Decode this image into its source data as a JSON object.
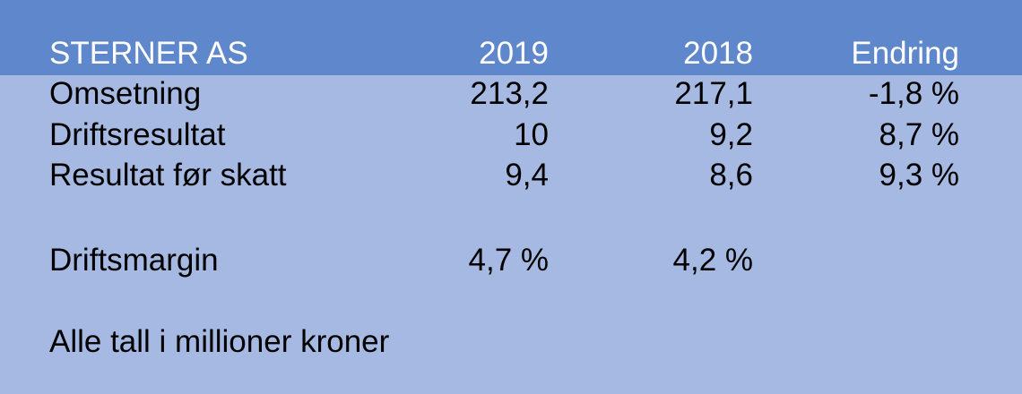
{
  "table": {
    "title": "STERNER AS",
    "columns": [
      "2019",
      "2018",
      "Endring"
    ],
    "rows": [
      {
        "label": "Omsetning",
        "values": [
          "213,2",
          "217,1",
          "-1,8 %"
        ]
      },
      {
        "label": "Driftsresultat",
        "values": [
          "10",
          "9,2",
          "8,7 %"
        ]
      },
      {
        "label": "Resultat før skatt",
        "values": [
          "9,4",
          "8,6",
          "9,3 %"
        ]
      },
      {
        "label": "Driftsmargin",
        "values": [
          "4,7 %",
          "4,2 %",
          ""
        ]
      }
    ]
  },
  "footnote": "Alle tall i millioner kroner",
  "colors": {
    "header_background": "#5f87cc",
    "body_background": "#a6b9e2",
    "header_text": "#ffffff",
    "body_text": "#000000"
  }
}
